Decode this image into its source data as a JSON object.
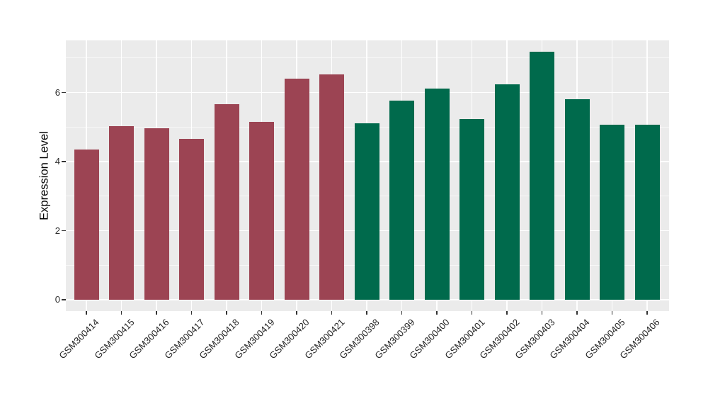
{
  "chart_data": {
    "type": "bar",
    "title": "",
    "xlabel": "",
    "ylabel": "Expression Level",
    "categories": [
      "GSM300414",
      "GSM300415",
      "GSM300416",
      "GSM300417",
      "GSM300418",
      "GSM300419",
      "GSM300420",
      "GSM300421",
      "GSM300398",
      "GSM300399",
      "GSM300400",
      "GSM300401",
      "GSM300402",
      "GSM300403",
      "GSM300404",
      "GSM300405",
      "GSM300406"
    ],
    "values": [
      4.35,
      5.03,
      4.96,
      4.66,
      5.67,
      5.14,
      6.41,
      6.53,
      5.11,
      5.76,
      6.11,
      5.23,
      6.24,
      7.17,
      5.81,
      5.07,
      5.06
    ],
    "groups": [
      "A",
      "A",
      "A",
      "A",
      "A",
      "A",
      "A",
      "A",
      "B",
      "B",
      "B",
      "B",
      "B",
      "B",
      "B",
      "B",
      "B"
    ],
    "group_colors": {
      "A": "#9C4453",
      "B": "#006A4C"
    },
    "yticks": [
      0,
      2,
      4,
      6
    ],
    "yticks_minor": [
      1,
      3,
      5,
      7
    ],
    "ylim": [
      0,
      7.5
    ],
    "legend": "none",
    "grid": "on",
    "panel_background": "#EBEBEB",
    "major_grid_color": "#FFFFFF",
    "minor_grid_color": "rgba(255,255,255,0.62)",
    "tick_color": "#333333",
    "axis_text_color": "#303030"
  }
}
